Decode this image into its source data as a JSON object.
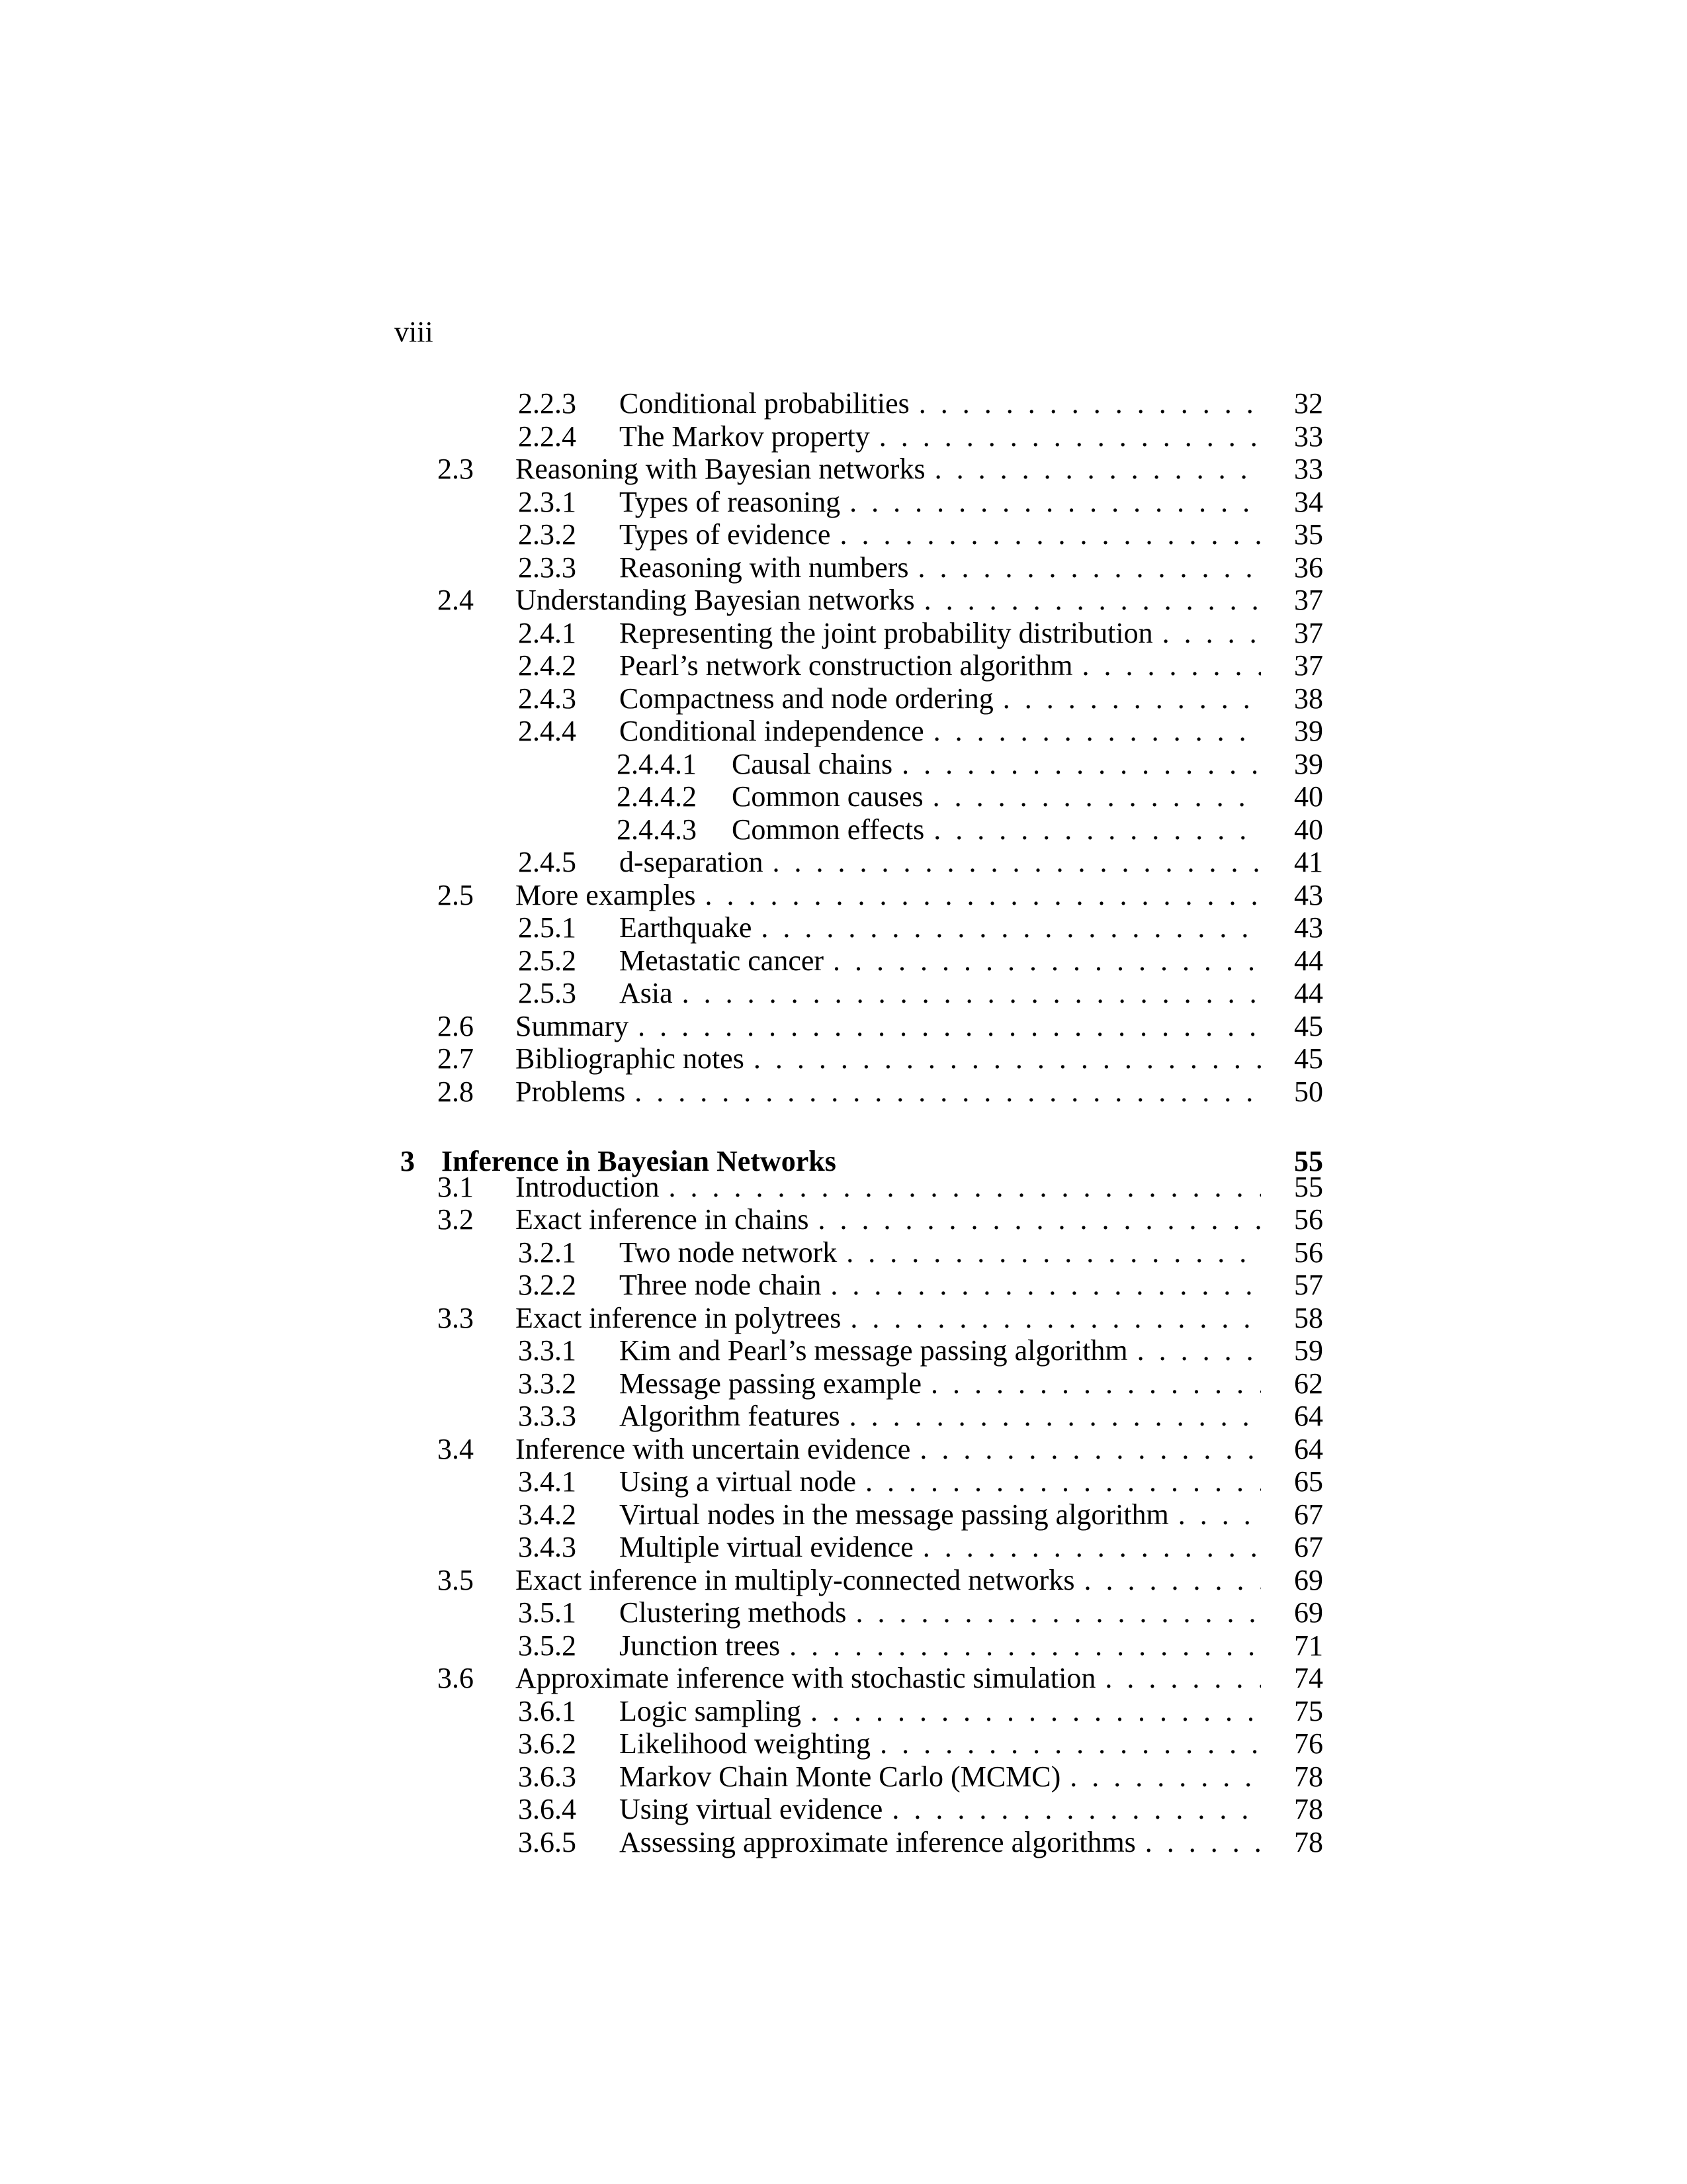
{
  "page": {
    "running_head": "viii"
  },
  "toc": {
    "entries": [
      {
        "level": 2,
        "number": "2.2.3",
        "title": "Conditional probabilities",
        "page": "32"
      },
      {
        "level": 2,
        "number": "2.2.4",
        "title": "The Markov property",
        "page": "33"
      },
      {
        "level": 1,
        "number": "2.3",
        "title": "Reasoning with Bayesian networks",
        "page": "33"
      },
      {
        "level": 2,
        "number": "2.3.1",
        "title": "Types of reasoning",
        "page": "34"
      },
      {
        "level": 2,
        "number": "2.3.2",
        "title": "Types of evidence",
        "page": "35"
      },
      {
        "level": 2,
        "number": "2.3.3",
        "title": "Reasoning with numbers",
        "page": "36"
      },
      {
        "level": 1,
        "number": "2.4",
        "title": "Understanding Bayesian networks",
        "page": "37"
      },
      {
        "level": 2,
        "number": "2.4.1",
        "title": "Representing the joint probability distribution",
        "page": "37"
      },
      {
        "level": 2,
        "number": "2.4.2",
        "title": "Pearl’s network construction algorithm",
        "page": "37"
      },
      {
        "level": 2,
        "number": "2.4.3",
        "title": "Compactness and node ordering",
        "page": "38"
      },
      {
        "level": 2,
        "number": "2.4.4",
        "title": "Conditional independence",
        "page": "39"
      },
      {
        "level": 3,
        "number": "2.4.4.1",
        "title": "Causal chains",
        "page": "39"
      },
      {
        "level": 3,
        "number": "2.4.4.2",
        "title": "Common causes",
        "page": "40"
      },
      {
        "level": 3,
        "number": "2.4.4.3",
        "title": "Common effects",
        "page": "40"
      },
      {
        "level": 2,
        "number": "2.4.5",
        "title": "d-separation",
        "page": "41"
      },
      {
        "level": 1,
        "number": "2.5",
        "title": "More examples",
        "page": "43"
      },
      {
        "level": 2,
        "number": "2.5.1",
        "title": "Earthquake",
        "page": "43"
      },
      {
        "level": 2,
        "number": "2.5.2",
        "title": "Metastatic cancer",
        "page": "44"
      },
      {
        "level": 2,
        "number": "2.5.3",
        "title": "Asia",
        "page": "44"
      },
      {
        "level": 1,
        "number": "2.6",
        "title": "Summary",
        "page": "45"
      },
      {
        "level": 1,
        "number": "2.7",
        "title": "Bibliographic notes",
        "page": "45"
      },
      {
        "level": 1,
        "number": "2.8",
        "title": "Problems",
        "page": "50"
      },
      {
        "level": 0,
        "number": "3",
        "title": "Inference in Bayesian Networks",
        "page": "55"
      },
      {
        "level": 1,
        "number": "3.1",
        "title": "Introduction",
        "page": "55"
      },
      {
        "level": 1,
        "number": "3.2",
        "title": "Exact inference in chains",
        "page": "56"
      },
      {
        "level": 2,
        "number": "3.2.1",
        "title": "Two node network",
        "page": "56"
      },
      {
        "level": 2,
        "number": "3.2.2",
        "title": "Three node chain",
        "page": "57"
      },
      {
        "level": 1,
        "number": "3.3",
        "title": "Exact inference in polytrees",
        "page": "58"
      },
      {
        "level": 2,
        "number": "3.3.1",
        "title": "Kim and Pearl’s message passing algorithm",
        "page": "59"
      },
      {
        "level": 2,
        "number": "3.3.2",
        "title": "Message passing example",
        "page": "62"
      },
      {
        "level": 2,
        "number": "3.3.3",
        "title": "Algorithm features",
        "page": "64"
      },
      {
        "level": 1,
        "number": "3.4",
        "title": "Inference with uncertain evidence",
        "page": "64"
      },
      {
        "level": 2,
        "number": "3.4.1",
        "title": "Using a virtual node",
        "page": "65"
      },
      {
        "level": 2,
        "number": "3.4.2",
        "title": "Virtual nodes in the message passing algorithm",
        "page": "67"
      },
      {
        "level": 2,
        "number": "3.4.3",
        "title": "Multiple virtual evidence",
        "page": "67"
      },
      {
        "level": 1,
        "number": "3.5",
        "title": "Exact inference in multiply-connected networks",
        "page": "69"
      },
      {
        "level": 2,
        "number": "3.5.1",
        "title": "Clustering methods",
        "page": "69"
      },
      {
        "level": 2,
        "number": "3.5.2",
        "title": "Junction trees",
        "page": "71"
      },
      {
        "level": 1,
        "number": "3.6",
        "title": "Approximate inference with stochastic simulation",
        "page": "74"
      },
      {
        "level": 2,
        "number": "3.6.1",
        "title": "Logic sampling",
        "page": "75"
      },
      {
        "level": 2,
        "number": "3.6.2",
        "title": "Likelihood weighting",
        "page": "76"
      },
      {
        "level": 2,
        "number": "3.6.3",
        "title": "Markov Chain Monte Carlo (MCMC)",
        "page": "78"
      },
      {
        "level": 2,
        "number": "3.6.4",
        "title": "Using virtual evidence",
        "page": "78"
      },
      {
        "level": 2,
        "number": "3.6.5",
        "title": "Assessing approximate inference algorithms",
        "page": "78"
      }
    ]
  }
}
